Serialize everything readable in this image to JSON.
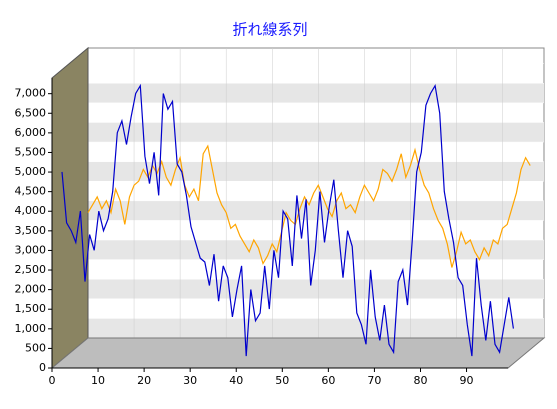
{
  "chart_data": {
    "type": "line",
    "title": "折れ線系列",
    "x": [
      0,
      1,
      2,
      3,
      4,
      5,
      6,
      7,
      8,
      9,
      10,
      11,
      12,
      13,
      14,
      15,
      16,
      17,
      18,
      19,
      20,
      21,
      22,
      23,
      24,
      25,
      26,
      27,
      28,
      29,
      30,
      31,
      32,
      33,
      34,
      35,
      36,
      37,
      38,
      39,
      40,
      41,
      42,
      43,
      44,
      45,
      46,
      47,
      48,
      49,
      50,
      51,
      52,
      53,
      54,
      55,
      56,
      57,
      58,
      59,
      60,
      61,
      62,
      63,
      64,
      65,
      66,
      67,
      68,
      69,
      70,
      71,
      72,
      73,
      74,
      75,
      76,
      77,
      78,
      79,
      80,
      81,
      82,
      83,
      84,
      85,
      86,
      87,
      88,
      89,
      90,
      91,
      92,
      93,
      94,
      95,
      96,
      97,
      98
    ],
    "series": [
      {
        "color": "#0000cd",
        "values": [
          4800,
          3500,
          3300,
          3000,
          3800,
          2000,
          3200,
          2800,
          3800,
          3300,
          3600,
          4300,
          5800,
          6100,
          5500,
          6200,
          6800,
          7000,
          5200,
          4500,
          5300,
          4200,
          6800,
          6400,
          6600,
          5000,
          4800,
          4200,
          3400,
          3000,
          2600,
          2500,
          1900,
          2700,
          1500,
          2400,
          2100,
          1100,
          1800,
          2400,
          100,
          1800,
          1000,
          1200,
          2400,
          1300,
          2800,
          2100,
          3800,
          3600,
          2400,
          4200,
          3100,
          4100,
          1900,
          2800,
          4300,
          3000,
          3900,
          4600,
          3300,
          2100,
          3300,
          2900,
          1200,
          900,
          400,
          2300,
          1100,
          500,
          1400,
          400,
          200,
          2000,
          2300,
          1400,
          3000,
          4800,
          5300,
          6500,
          6800,
          7000,
          6300,
          4300,
          3600,
          3000,
          2100,
          1900,
          900,
          100,
          2600,
          1400,
          500,
          1500,
          400,
          200,
          900,
          1600,
          800
        ]
      },
      {
        "color": "#ffa500",
        "values": [
          3200,
          3400,
          3600,
          3300,
          3500,
          3200,
          3800,
          3500,
          2900,
          3600,
          3900,
          4000,
          4300,
          4100,
          4400,
          4200,
          4500,
          4100,
          3900,
          4300,
          4600,
          3900,
          3600,
          3800,
          3500,
          4700,
          4900,
          4300,
          3700,
          3400,
          3200,
          2800,
          2900,
          2600,
          2400,
          2200,
          2500,
          2300,
          1900,
          2100,
          2400,
          2200,
          2700,
          3200,
          3000,
          2900,
          3300,
          3600,
          3400,
          3700,
          3900,
          3600,
          3300,
          3100,
          3500,
          3700,
          3300,
          3400,
          3200,
          3600,
          3900,
          3700,
          3500,
          3800,
          4300,
          4200,
          4000,
          4300,
          4700,
          4100,
          4400,
          4800,
          4300,
          3900,
          3700,
          3300,
          3000,
          2800,
          2400,
          1800,
          2200,
          2700,
          2400,
          2500,
          2200,
          2000,
          2300,
          2100,
          2500,
          2400,
          2800,
          2900,
          3300,
          3700,
          4300,
          4600,
          4400,
          null,
          null
        ]
      }
    ],
    "xlim": [
      0,
      99
    ],
    "ylim": [
      0,
      7400
    ],
    "xticks": [
      0,
      10,
      20,
      30,
      40,
      50,
      60,
      70,
      80,
      90
    ],
    "yticks": [
      0,
      500,
      {
        "value": 1000,
        "label": "1,000"
      },
      {
        "value": 1500,
        "label": "1,500"
      },
      {
        "value": 2000,
        "label": "2,000"
      },
      {
        "value": 2500,
        "label": "2,500"
      },
      {
        "value": 3000,
        "label": "3,000"
      },
      {
        "value": 3500,
        "label": "3,500"
      },
      {
        "value": 4000,
        "label": "4,000"
      },
      {
        "value": 4500,
        "label": "4,500"
      },
      {
        "value": 5000,
        "label": "5,000"
      },
      {
        "value": 5500,
        "label": "5,500"
      },
      {
        "value": 6000,
        "label": "6,000"
      },
      {
        "value": 6500,
        "label": "6,500"
      },
      {
        "value": 7000,
        "label": "7,000"
      }
    ],
    "grid": true
  }
}
